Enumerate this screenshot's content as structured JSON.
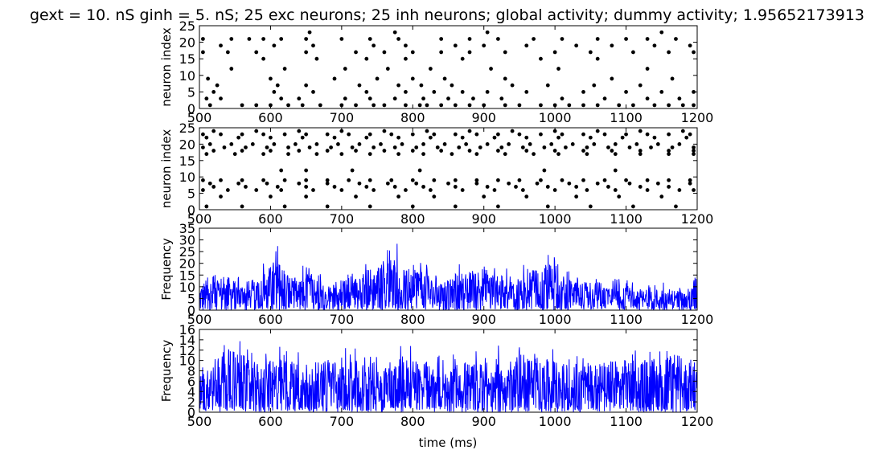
{
  "title": "gext = 10. nS ginh = 5. nS; 25 exc neurons; 25 inh neurons; global activity; dummy activity; 1.95652173913",
  "xlabel": "time (ms)",
  "colors": {
    "raster": "#000000",
    "trace": "#0000ff",
    "axes": "#000000"
  },
  "chart_data": [
    {
      "type": "scatter",
      "name": "excitatory-raster",
      "ylabel": "neuron index",
      "xlim": [
        500,
        1200
      ],
      "ylim": [
        0,
        25
      ],
      "xticks": [
        "500",
        "600",
        "700",
        "800",
        "900",
        "1000",
        "1100",
        "1200"
      ],
      "yticks": [
        "0",
        "5",
        "10",
        "15",
        "20",
        "25"
      ],
      "neurons": [
        {
          "index": 1,
          "spike_times": [
            515,
            560,
            580,
            600,
            625,
            645,
            670,
            700,
            720,
            745,
            760,
            790,
            810,
            820,
            840,
            860,
            880,
            900,
            930,
            950,
            980,
            1000,
            1020,
            1040,
            1060,
            1090,
            1110,
            1140,
            1160,
            1180,
            1195
          ]
        },
        {
          "index": 3,
          "spike_times": [
            510,
            530,
            615,
            640,
            705,
            740,
            775,
            815,
            850,
            885,
            925,
            1010,
            1070,
            1130,
            1175
          ]
        },
        {
          "index": 5,
          "spike_times": [
            520,
            605,
            660,
            735,
            790,
            830,
            870,
            905,
            960,
            1040,
            1100,
            1150,
            1195
          ]
        },
        {
          "index": 7,
          "spike_times": [
            525,
            610,
            650,
            725,
            780,
            812,
            855,
            940,
            990,
            1055,
            1120
          ]
        },
        {
          "index": 9,
          "spike_times": [
            512,
            600,
            690,
            750,
            800,
            845,
            930,
            1080,
            1165
          ]
        },
        {
          "index": 12,
          "spike_times": [
            545,
            620,
            705,
            765,
            825,
            910,
            1005,
            1130
          ]
        },
        {
          "index": 15,
          "spike_times": [
            590,
            665,
            735,
            790,
            870,
            980,
            1060
          ]
        },
        {
          "index": 17,
          "spike_times": [
            505,
            540,
            580,
            650,
            720,
            760,
            800,
            840,
            880,
            930,
            1000,
            1050,
            1110,
            1160,
            1195
          ]
        },
        {
          "index": 19,
          "spike_times": [
            530,
            605,
            660,
            745,
            790,
            860,
            900,
            960,
            1030,
            1080,
            1140,
            1190
          ]
        },
        {
          "index": 21,
          "spike_times": [
            505,
            545,
            570,
            590,
            615,
            650,
            700,
            740,
            780,
            840,
            880,
            920,
            970,
            1010,
            1060,
            1100,
            1130,
            1170
          ]
        },
        {
          "index": 23,
          "spike_times": [
            655,
            775,
            905,
            1150
          ]
        }
      ]
    },
    {
      "type": "scatter",
      "name": "inhibitory-raster",
      "ylabel": "neuron index",
      "xlim": [
        500,
        1200
      ],
      "ylim": [
        0,
        25
      ],
      "xticks": [
        "500",
        "600",
        "700",
        "800",
        "900",
        "1000",
        "1100",
        "1200"
      ],
      "yticks": [
        "0",
        "5",
        "10",
        "15",
        "20",
        "25"
      ],
      "neurons": [
        {
          "index": 1,
          "spike_times": [
            510,
            560,
            620,
            680,
            740,
            800,
            860,
            920,
            990,
            1050,
            1110,
            1170
          ]
        },
        {
          "index": 4,
          "spike_times": [
            530,
            600,
            650,
            720,
            780,
            830,
            900,
            960,
            1030,
            1090,
            1150
          ]
        },
        {
          "index": 6,
          "spike_times": [
            505,
            540,
            580,
            615,
            660,
            700,
            745,
            790,
            825,
            870,
            915,
            955,
            1000,
            1045,
            1085,
            1130,
            1175,
            1195
          ]
        },
        {
          "index": 7,
          "spike_times": [
            520,
            565,
            610,
            650,
            690,
            735,
            775,
            815,
            860,
            905,
            945,
            990,
            1030,
            1075,
            1120,
            1160
          ]
        },
        {
          "index": 8,
          "spike_times": [
            515,
            555,
            595,
            640,
            680,
            725,
            765,
            805,
            850,
            890,
            935,
            975,
            1020,
            1060,
            1105,
            1145,
            1190
          ]
        },
        {
          "index": 9,
          "spike_times": [
            505,
            530,
            560,
            590,
            620,
            650,
            680,
            710,
            740,
            770,
            800,
            830,
            860,
            890,
            920,
            950,
            980,
            1010,
            1040,
            1070,
            1100,
            1130,
            1160,
            1190
          ]
        },
        {
          "index": 12,
          "spike_times": [
            615,
            650,
            715,
            810,
            985,
            1085
          ]
        },
        {
          "index": 17,
          "spike_times": [
            510,
            550,
            590,
            625,
            665,
            700,
            740,
            780,
            815,
            855,
            890,
            930,
            970,
            1005,
            1045,
            1085,
            1120,
            1160,
            1195
          ]
        },
        {
          "index": 18,
          "spike_times": [
            520,
            560,
            600,
            640,
            680,
            720,
            760,
            800,
            840,
            880,
            920,
            960,
            1000,
            1040,
            1080,
            1120,
            1160,
            1195
          ]
        },
        {
          "index": 19,
          "spike_times": [
            505,
            535,
            565,
            595,
            625,
            655,
            685,
            715,
            745,
            775,
            805,
            835,
            865,
            895,
            925,
            955,
            985,
            1015,
            1045,
            1075,
            1105,
            1135,
            1165,
            1195
          ]
        },
        {
          "index": 20,
          "spike_times": [
            515,
            545,
            575,
            605,
            635,
            665,
            695,
            725,
            755,
            785,
            815,
            845,
            875,
            905,
            935,
            965,
            995,
            1025,
            1055,
            1085,
            1115,
            1145,
            1175
          ]
        },
        {
          "index": 22,
          "spike_times": [
            510,
            555,
            600,
            645,
            690,
            735,
            780,
            825,
            870,
            915,
            960,
            1005,
            1050,
            1095,
            1140,
            1185
          ]
        },
        {
          "index": 23,
          "spike_times": [
            505,
            530,
            560,
            590,
            620,
            650,
            680,
            710,
            740,
            770,
            800,
            830,
            860,
            890,
            920,
            950,
            980,
            1010,
            1040,
            1070,
            1100,
            1130,
            1160,
            1190
          ]
        },
        {
          "index": 24,
          "spike_times": [
            520,
            580,
            640,
            700,
            760,
            820,
            880,
            940,
            1000,
            1060,
            1120,
            1180
          ]
        }
      ]
    },
    {
      "type": "line",
      "name": "global-activity",
      "ylabel": "Frequency",
      "xlim": [
        500,
        1200
      ],
      "ylim": [
        0,
        35
      ],
      "xticks": [
        "500",
        "600",
        "700",
        "800",
        "900",
        "1000",
        "1100",
        "1200"
      ],
      "yticks": [
        "0",
        "5",
        "10",
        "15",
        "20",
        "25",
        "30",
        "35"
      ],
      "envelope": {
        "x": [
          500,
          520,
          540,
          560,
          580,
          600,
          612,
          625,
          640,
          652,
          665,
          680,
          700,
          720,
          740,
          760,
          775,
          790,
          800,
          812,
          825,
          840,
          860,
          880,
          900,
          920,
          940,
          960,
          980,
          995,
          1010,
          1030,
          1050,
          1070,
          1090,
          1110,
          1130,
          1150,
          1170,
          1185,
          1200
        ],
        "y": [
          14,
          19,
          18,
          15,
          17,
          24,
          32,
          20,
          15,
          25,
          18,
          13,
          16,
          20,
          23,
          26,
          30,
          22,
          19,
          29,
          18,
          16,
          20,
          21,
          24,
          19,
          17,
          21,
          22,
          26,
          19,
          15,
          15,
          12,
          14,
          12,
          11,
          12,
          11,
          10,
          20
        ]
      }
    },
    {
      "type": "line",
      "name": "dummy-activity",
      "ylabel": "Frequency",
      "xlim": [
        500,
        1200
      ],
      "ylim": [
        0,
        16
      ],
      "xticks": [
        "500",
        "600",
        "700",
        "800",
        "900",
        "1000",
        "1100",
        "1200"
      ],
      "yticks": [
        "0",
        "2",
        "4",
        "6",
        "8",
        "10",
        "12",
        "14",
        "16"
      ],
      "envelope": {
        "x": [
          500,
          540,
          580,
          620,
          660,
          700,
          740,
          780,
          820,
          860,
          900,
          940,
          980,
          1020,
          1060,
          1100,
          1140,
          1170,
          1200
        ],
        "y": [
          11,
          16,
          12,
          13,
          12,
          13,
          12,
          14,
          12,
          13,
          12,
          14,
          13,
          12,
          12,
          13,
          13,
          14,
          11
        ]
      }
    }
  ]
}
